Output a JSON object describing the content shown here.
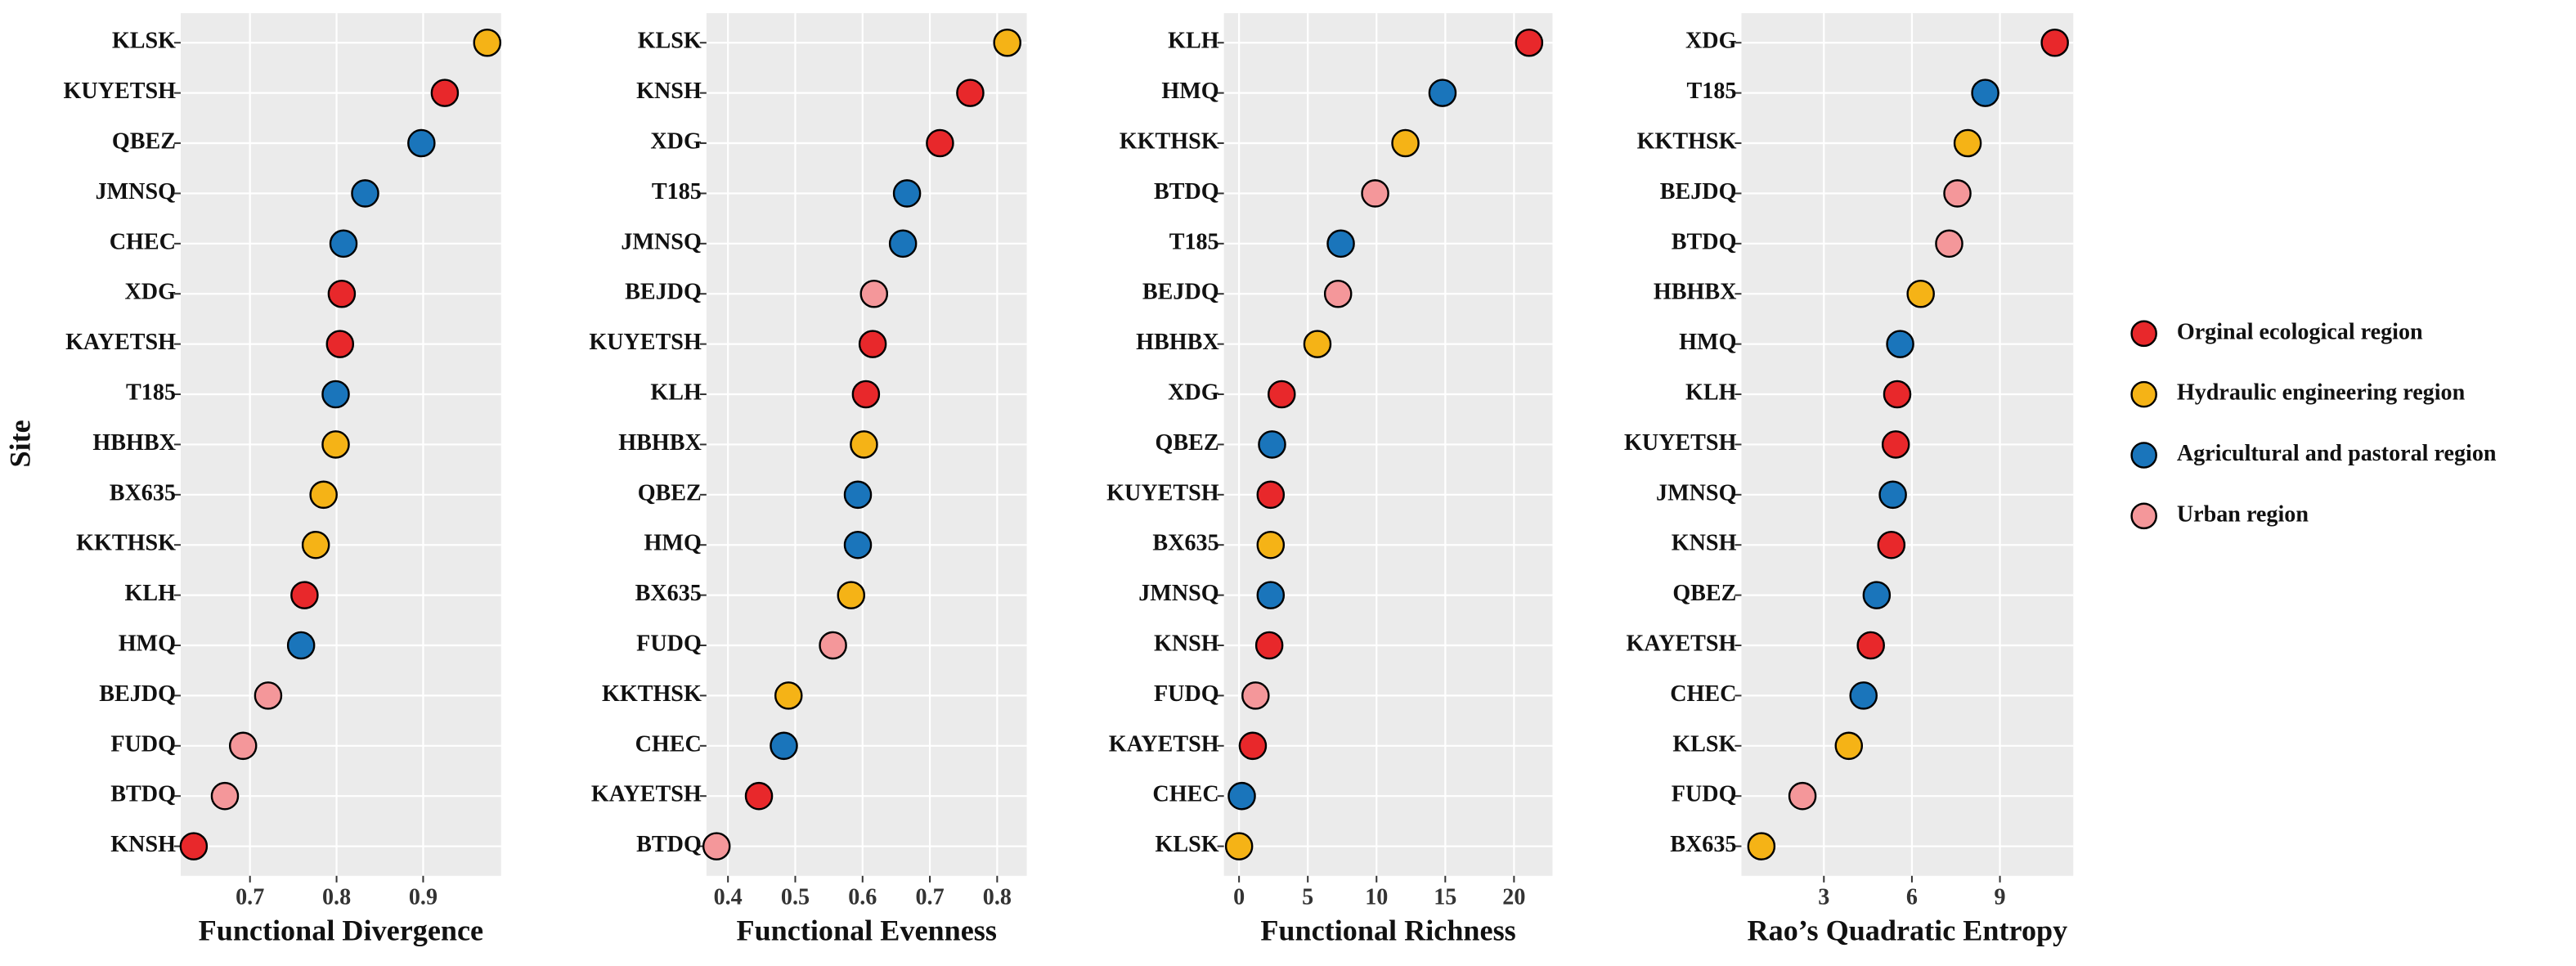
{
  "chart_data": [
    {
      "type": "dot",
      "xlabel": "Functional Divergence",
      "ylabel": "Site",
      "categories": [
        "KLSK",
        "KUYETSH",
        "QBEZ",
        "JMNSQ",
        "CHEC",
        "XDG",
        "KAYETSH",
        "T185",
        "HBHBX",
        "BX635",
        "KKTHSK",
        "KLH",
        "HMQ",
        "BEJDQ",
        "FUDQ",
        "BTDQ",
        "KNSH"
      ],
      "series": [
        {
          "name": "Orginal ecological region",
          "color": "#e8282b",
          "values": [
            null,
            0.925,
            null,
            null,
            null,
            0.806,
            0.804,
            null,
            null,
            null,
            null,
            0.763,
            null,
            null,
            null,
            null,
            0.635
          ]
        },
        {
          "name": "Hydraulic engineering  region",
          "color": "#f5b316",
          "values": [
            0.974,
            null,
            null,
            null,
            null,
            null,
            null,
            null,
            0.799,
            0.785,
            0.776,
            null,
            null,
            null,
            null,
            null,
            null
          ]
        },
        {
          "name": "Agricultural and pastoral region",
          "color": "#1a75bb",
          "values": [
            null,
            null,
            0.898,
            0.833,
            0.808,
            null,
            null,
            0.799,
            null,
            null,
            null,
            null,
            0.759,
            null,
            null,
            null,
            null
          ]
        },
        {
          "name": "Urban region",
          "color": "#f4979a",
          "values": [
            null,
            null,
            null,
            null,
            null,
            null,
            null,
            null,
            null,
            null,
            null,
            null,
            null,
            0.721,
            0.692,
            0.671,
            null
          ]
        }
      ],
      "xlim": [
        0.62,
        0.99
      ],
      "xticks": [
        0.7,
        0.8,
        0.9
      ],
      "grid": true
    },
    {
      "type": "dot",
      "xlabel": "Functional Evenness",
      "categories": [
        "KLSK",
        "KNSH",
        "XDG",
        "T185",
        "JMNSQ",
        "BEJDQ",
        "KUYETSH",
        "KLH",
        "HBHBX",
        "QBEZ",
        "HMQ",
        "BX635",
        "FUDQ",
        "KKTHSK",
        "CHEC",
        "KAYETSH",
        "BTDQ"
      ],
      "series": [
        {
          "name": "Orginal ecological region",
          "color": "#e8282b",
          "values": [
            null,
            0.76,
            0.715,
            null,
            null,
            null,
            0.615,
            0.605,
            null,
            null,
            null,
            null,
            null,
            null,
            null,
            0.446,
            null
          ]
        },
        {
          "name": "Hydraulic engineering  region",
          "color": "#f5b316",
          "values": [
            0.815,
            null,
            null,
            null,
            null,
            null,
            null,
            null,
            0.602,
            null,
            null,
            0.583,
            null,
            0.49,
            null,
            null,
            null
          ]
        },
        {
          "name": "Agricultural and pastoral region",
          "color": "#1a75bb",
          "values": [
            null,
            null,
            null,
            0.666,
            0.66,
            null,
            null,
            null,
            null,
            0.593,
            0.593,
            null,
            null,
            null,
            0.483,
            null,
            null
          ]
        },
        {
          "name": "Urban region",
          "color": "#f4979a",
          "values": [
            null,
            null,
            null,
            null,
            null,
            0.617,
            null,
            null,
            null,
            null,
            null,
            null,
            0.556,
            null,
            null,
            null,
            0.383
          ]
        }
      ],
      "xlim": [
        0.368,
        0.844
      ],
      "xticks": [
        0.4,
        0.5,
        0.6,
        0.7,
        0.8
      ],
      "grid": true
    },
    {
      "type": "dot",
      "xlabel": "Functional Richness",
      "categories": [
        "KLH",
        "HMQ",
        "KKTHSK",
        "BTDQ",
        "T185",
        "BEJDQ",
        "HBHBX",
        "XDG",
        "QBEZ",
        "KUYETSH",
        "BX635",
        "JMNSQ",
        "KNSH",
        "FUDQ",
        "KAYETSH",
        "CHEC",
        "KLSK"
      ],
      "series": [
        {
          "name": "Orginal ecological region",
          "color": "#e8282b",
          "values": [
            21.1,
            null,
            null,
            null,
            null,
            null,
            null,
            3.1,
            null,
            2.3,
            null,
            null,
            2.2,
            null,
            1.0,
            null,
            null
          ]
        },
        {
          "name": "Hydraulic engineering  region",
          "color": "#f5b316",
          "values": [
            null,
            null,
            12.1,
            null,
            null,
            null,
            5.7,
            null,
            null,
            null,
            2.3,
            null,
            null,
            null,
            null,
            null,
            0
          ]
        },
        {
          "name": "Agricultural and pastoral region",
          "color": "#1a75bb",
          "values": [
            null,
            14.8,
            null,
            null,
            7.4,
            null,
            null,
            null,
            2.4,
            null,
            null,
            2.3,
            null,
            null,
            null,
            0.2,
            null
          ]
        },
        {
          "name": "Urban region",
          "color": "#f4979a",
          "values": [
            null,
            null,
            null,
            9.9,
            null,
            7.2,
            null,
            null,
            null,
            null,
            null,
            null,
            null,
            1.2,
            null,
            null,
            null
          ]
        }
      ],
      "xlim": [
        -1.1,
        22.8
      ],
      "xticks": [
        0,
        5,
        10,
        15,
        20
      ],
      "grid": true
    },
    {
      "type": "dot",
      "xlabel": "Rao’s Quadratic Entropy",
      "categories": [
        "XDG",
        "T185",
        "KKTHSK",
        "BEJDQ",
        "BTDQ",
        "HBHBX",
        "HMQ",
        "KLH",
        "KUYETSH",
        "JMNSQ",
        "KNSH",
        "QBEZ",
        "KAYETSH",
        "CHEC",
        "KLSK",
        "FUDQ",
        "BX635"
      ],
      "series": [
        {
          "name": "Orginal ecological region",
          "color": "#e8282b",
          "values": [
            10.87,
            null,
            null,
            null,
            null,
            null,
            null,
            5.5,
            5.45,
            null,
            5.3,
            null,
            4.6,
            null,
            null,
            null,
            null
          ]
        },
        {
          "name": "Hydraulic engineering  region",
          "color": "#f5b316",
          "values": [
            null,
            null,
            7.9,
            null,
            null,
            6.3,
            null,
            null,
            null,
            null,
            null,
            null,
            null,
            null,
            3.85,
            null,
            0.87
          ]
        },
        {
          "name": "Agricultural and pastoral region",
          "color": "#1a75bb",
          "values": [
            null,
            8.5,
            null,
            null,
            null,
            null,
            5.6,
            null,
            null,
            5.35,
            null,
            4.8,
            null,
            4.35,
            null,
            null,
            null
          ]
        },
        {
          "name": "Urban region",
          "color": "#f4979a",
          "values": [
            null,
            null,
            null,
            7.55,
            7.27,
            null,
            null,
            null,
            null,
            null,
            null,
            null,
            null,
            null,
            null,
            2.27,
            null
          ]
        }
      ],
      "xlim": [
        0.19,
        11.5
      ],
      "xticks": [
        3,
        6,
        9
      ],
      "grid": true
    }
  ]
}
